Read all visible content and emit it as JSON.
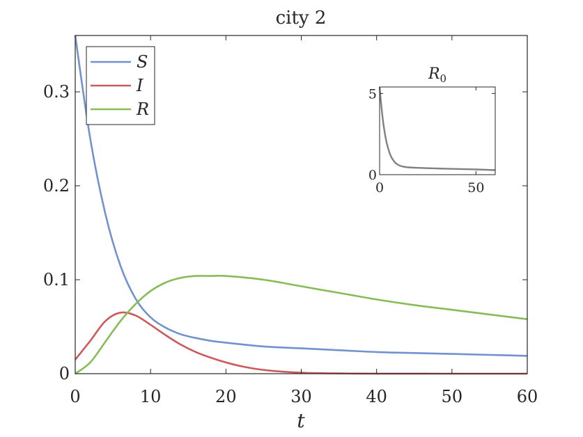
{
  "chart_data": [
    {
      "type": "line",
      "title": "city 2",
      "xlabel": "t",
      "ylabel": "",
      "xlim": [
        0,
        60
      ],
      "ylim": [
        0,
        0.36
      ],
      "xticks": [
        0,
        10,
        20,
        30,
        40,
        50,
        60
      ],
      "yticks": [
        0,
        0.1,
        0.2,
        0.3
      ],
      "ytick_labels": [
        "0",
        "0.1",
        "0.2",
        "0.3"
      ],
      "grid": false,
      "legend_position": "top-left",
      "series": [
        {
          "name": "S",
          "color": "#7092ce",
          "x": [
            0,
            2,
            4,
            6,
            8,
            10,
            12,
            14,
            16,
            18,
            20,
            25,
            30,
            35,
            40,
            45,
            50,
            55,
            60
          ],
          "y": [
            0.36,
            0.25,
            0.17,
            0.115,
            0.08,
            0.06,
            0.049,
            0.042,
            0.038,
            0.035,
            0.033,
            0.029,
            0.027,
            0.025,
            0.023,
            0.022,
            0.021,
            0.02,
            0.019
          ]
        },
        {
          "name": "I",
          "color": "#cc5a5a",
          "x": [
            0,
            2,
            4,
            6,
            8,
            10,
            12,
            14,
            16,
            18,
            20,
            22,
            25,
            30,
            35,
            40,
            50,
            60
          ],
          "y": [
            0.015,
            0.035,
            0.056,
            0.065,
            0.062,
            0.052,
            0.041,
            0.031,
            0.023,
            0.017,
            0.012,
            0.008,
            0.004,
            0.001,
            0.0003,
            0.0001,
            0,
            0
          ]
        },
        {
          "name": "R",
          "color": "#86bc57",
          "x": [
            0,
            2,
            4,
            6,
            8,
            10,
            12,
            14,
            16,
            18,
            20,
            25,
            30,
            35,
            40,
            45,
            50,
            55,
            60
          ],
          "y": [
            0,
            0.012,
            0.034,
            0.056,
            0.074,
            0.088,
            0.097,
            0.102,
            0.104,
            0.104,
            0.104,
            0.1,
            0.093,
            0.086,
            0.079,
            0.073,
            0.068,
            0.063,
            0.058
          ]
        }
      ]
    },
    {
      "type": "line",
      "title": "R",
      "title_subscript": "0",
      "xlim": [
        0,
        60
      ],
      "ylim": [
        0,
        5.4
      ],
      "xticks": [
        0,
        50
      ],
      "yticks": [
        0,
        5
      ],
      "grid": false,
      "series": [
        {
          "color": "#808080",
          "x": [
            0,
            1,
            2,
            3,
            4,
            5,
            6,
            8,
            10,
            12,
            15,
            20,
            30,
            40,
            50,
            60
          ],
          "y": [
            5.4,
            4.1,
            3.1,
            2.35,
            1.8,
            1.4,
            1.1,
            0.75,
            0.58,
            0.5,
            0.45,
            0.42,
            0.38,
            0.35,
            0.32,
            0.28
          ]
        }
      ]
    }
  ]
}
